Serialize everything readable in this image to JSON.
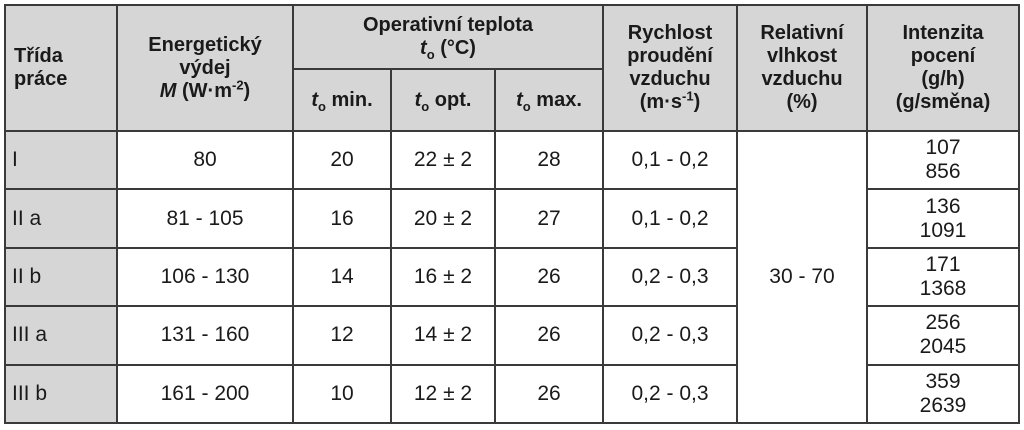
{
  "header": {
    "trida_line1": "Třída",
    "trida_line2": "práce",
    "energy_line1": "Energetický",
    "energy_line2": "výdej",
    "energy_symbol": "M",
    "energy_unit": "(W·m",
    "energy_unit_exp": "-2",
    "energy_unit_close": ")",
    "oper_line1": "Operativní teplota",
    "oper_symbol": "t",
    "oper_sub": "o",
    "oper_unit": " (°C)",
    "sub_min_symbol": "t",
    "sub_min_sub": "o",
    "sub_min_label": " min.",
    "sub_opt_symbol": "t",
    "sub_opt_sub": "o",
    "sub_opt_label": " opt.",
    "sub_max_symbol": "t",
    "sub_max_sub": "o",
    "sub_max_label": " max.",
    "speed_line1": "Rychlost",
    "speed_line2": "proudění",
    "speed_line3": "vzduchu",
    "speed_unit": "(m·s",
    "speed_unit_exp": "-1",
    "speed_unit_close": ")",
    "humid_line1": "Relativní",
    "humid_line2": "vlhkost",
    "humid_line3": "vzduchu",
    "humid_line4": "(%)",
    "sweat_line1": "Intenzita",
    "sweat_line2": "pocení",
    "sweat_line3": "(g/h)",
    "sweat_line4": "(g/směna)"
  },
  "humidity_value": "30 - 70",
  "rows": [
    {
      "trida": "I",
      "energy": "80",
      "tmin": "20",
      "topt": "22 ± 2",
      "tmax": "28",
      "speed": "0,1 - 0,2",
      "sweat_h": "107",
      "sweat_shift": "856"
    },
    {
      "trida": "II a",
      "energy": "81 - 105",
      "tmin": "16",
      "topt": "20 ± 2",
      "tmax": "27",
      "speed": "0,1 - 0,2",
      "sweat_h": "136",
      "sweat_shift": "1091"
    },
    {
      "trida": "II b",
      "energy": "106 - 130",
      "tmin": "14",
      "topt": "16 ± 2",
      "tmax": "26",
      "speed": "0,2 - 0,3",
      "sweat_h": "171",
      "sweat_shift": "1368"
    },
    {
      "trida": "III a",
      "energy": "131 - 160",
      "tmin": "12",
      "topt": "14 ± 2",
      "tmax": "26",
      "speed": "0,2 - 0,3",
      "sweat_h": "256",
      "sweat_shift": "2045"
    },
    {
      "trida": "III b",
      "energy": "161 - 200",
      "tmin": "10",
      "topt": "12 ± 2",
      "tmax": "26",
      "speed": "0,2 - 0,3",
      "sweat_h": "359",
      "sweat_shift": "2639"
    }
  ]
}
